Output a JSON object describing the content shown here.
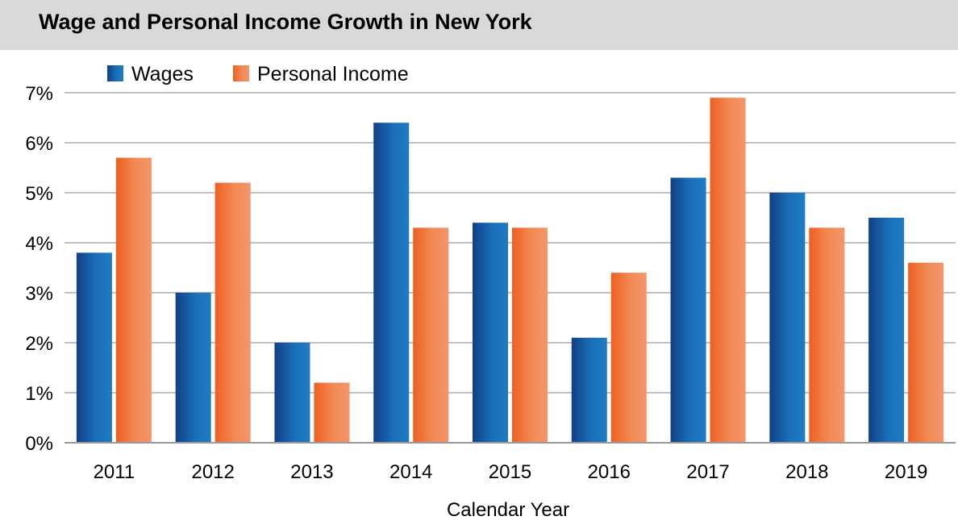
{
  "title": "Wage and Personal Income Growth in New York",
  "chart_data": {
    "type": "bar",
    "title": "Wage and Personal Income Growth in New York",
    "xlabel": "Calendar Year",
    "ylabel": "",
    "ylim": [
      0,
      7
    ],
    "yticks": [
      "0%",
      "1%",
      "2%",
      "3%",
      "4%",
      "5%",
      "6%",
      "7%"
    ],
    "grid": true,
    "legend_position": "top-left",
    "categories": [
      "2011",
      "2012",
      "2013",
      "2014",
      "2015",
      "2016",
      "2017",
      "2018",
      "2019"
    ],
    "series": [
      {
        "name": "Wages",
        "color": "#1f5fa8",
        "values": [
          3.8,
          3.0,
          2.0,
          6.4,
          4.4,
          2.1,
          5.3,
          5.0,
          4.5
        ]
      },
      {
        "name": "Personal Income",
        "color": "#f07030",
        "values": [
          5.7,
          5.2,
          1.2,
          4.3,
          4.3,
          3.4,
          6.9,
          4.3,
          3.6
        ]
      }
    ]
  }
}
